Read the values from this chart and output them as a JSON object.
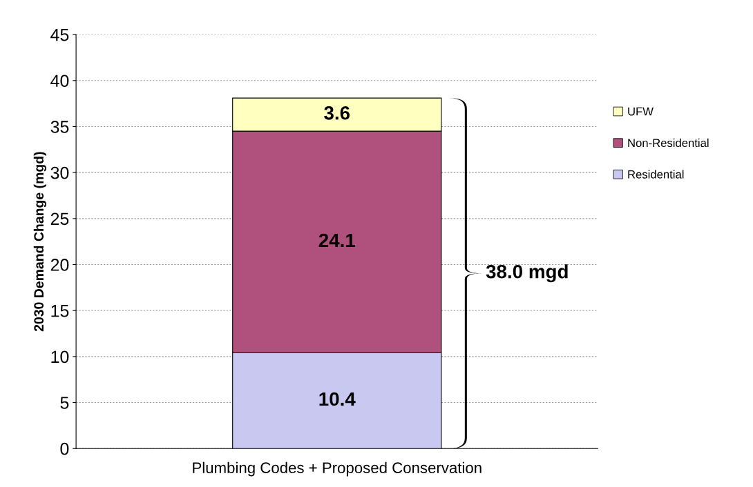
{
  "chart_data": {
    "type": "bar",
    "stacked": true,
    "categories": [
      "Plumbing Codes + Proposed Conservation"
    ],
    "ylabel": "2030 Demand Change (mgd)",
    "series": [
      {
        "name": "Residential",
        "color": "#c8c8f0",
        "values": [
          10.4
        ]
      },
      {
        "name": "Non-Residential",
        "color": "#b0507c",
        "values": [
          24.1
        ]
      },
      {
        "name": "UFW",
        "color": "#ffffc0",
        "values": [
          3.6
        ]
      }
    ],
    "ylim": [
      0,
      45
    ],
    "yticks": [
      0,
      5,
      10,
      15,
      20,
      25,
      30,
      35,
      40,
      45
    ],
    "grid": "y",
    "legend": "right",
    "data_labels": true,
    "annotations": [
      "38.0 mgd"
    ]
  }
}
